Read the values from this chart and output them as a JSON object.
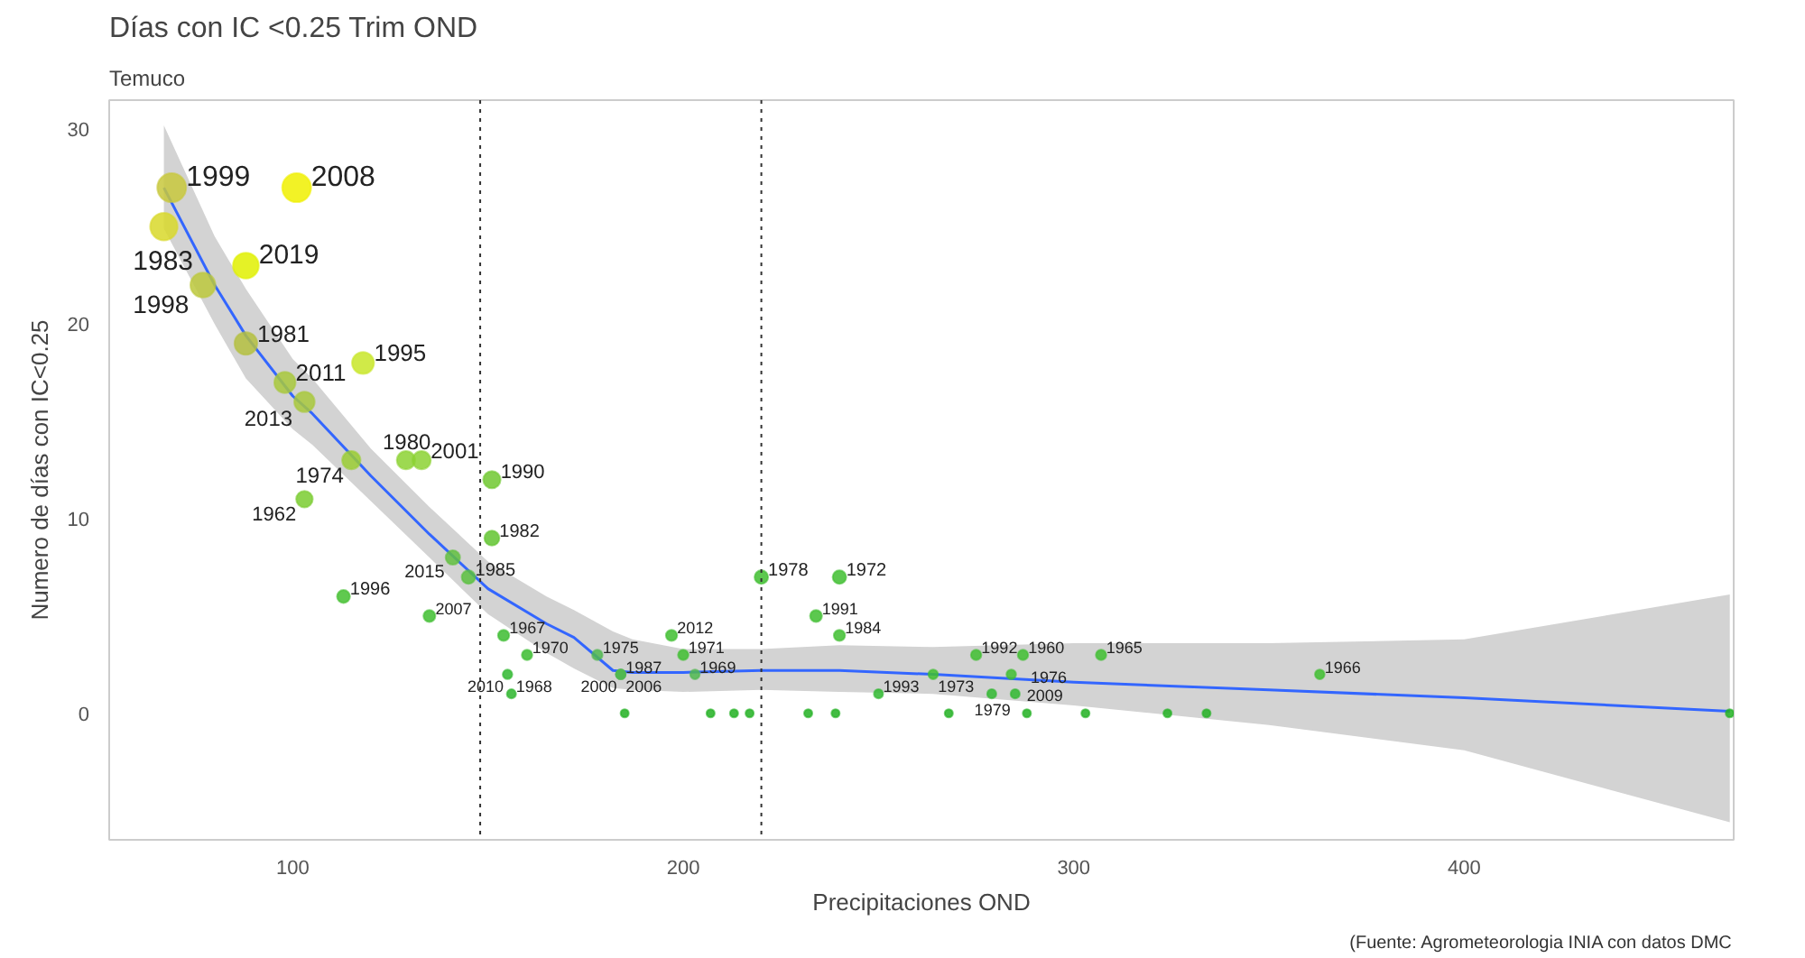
{
  "chart_data": {
    "type": "bubble",
    "title": "Días con IC <0.25 Trim OND",
    "subtitle": "Temuco",
    "xlabel": "Precipitaciones OND",
    "ylabel": "Numero de días con IC<0.25",
    "xlim": [
      53,
      469
    ],
    "ylim": [
      -6.5,
      31.5
    ],
    "xticks": [
      100,
      200,
      300,
      400
    ],
    "yticks": [
      0,
      10,
      20,
      30
    ],
    "grid": false,
    "ref_lines": [
      {
        "axis": "x",
        "value": 148,
        "label": null,
        "line_style": "dotted",
        "color": "#333333"
      },
      {
        "axis": "x",
        "value": 220,
        "label": null,
        "line_style": "dotted",
        "color": "#333333"
      }
    ],
    "series": [
      {
        "type": "line",
        "color": "#3366ff",
        "x": [
          67,
          80,
          88,
          100,
          105,
          120,
          135,
          150,
          165,
          172,
          182,
          187,
          200,
          220,
          240,
          264,
          300,
          350,
          400,
          468
        ],
        "values": [
          27,
          22,
          19.4,
          16.3,
          15.4,
          12.2,
          9.2,
          6.4,
          4.6,
          3.9,
          2.2,
          2.1,
          2.1,
          2.2,
          2.2,
          2,
          1.6,
          1.2,
          0.8,
          0.1
        ],
        "lower": [
          24.9,
          20,
          17.2,
          14.6,
          13.8,
          10.9,
          8,
          5.1,
          3.1,
          2.3,
          1.3,
          1.2,
          1.1,
          1.2,
          1.1,
          1,
          0.4,
          -0.6,
          -1.9,
          -5.6
        ],
        "upper": [
          30.2,
          24.5,
          21.8,
          18.2,
          17.2,
          13.6,
          10.6,
          7.8,
          6,
          5.3,
          4.2,
          3.8,
          3.3,
          3.3,
          3.5,
          3.4,
          3.6,
          3.6,
          3.8,
          6.1
        ]
      },
      {
        "x": [
          69,
          67,
          101,
          88,
          77,
          88,
          118,
          98,
          103,
          115,
          129,
          133,
          103,
          151,
          151,
          141,
          145,
          113,
          135,
          154,
          160,
          155,
          156,
          178,
          184,
          184,
          184,
          197,
          200,
          203,
          220,
          240,
          234,
          240,
          275,
          287,
          284,
          307,
          264,
          250,
          279,
          285,
          363,
          185,
          207,
          213,
          217,
          232,
          239,
          268,
          288,
          303,
          324,
          334,
          468
        ],
        "values": [
          27,
          25,
          27,
          23,
          22,
          19,
          18,
          17,
          16,
          13,
          13,
          13,
          11,
          12,
          9,
          8,
          7,
          6,
          5,
          4,
          3,
          2,
          1,
          3,
          2,
          2,
          2,
          4,
          3,
          2,
          7,
          7,
          5,
          4,
          3,
          3,
          2,
          3,
          2,
          1,
          1,
          1,
          2,
          0,
          0,
          0,
          0,
          0,
          0,
          0,
          0,
          0,
          0,
          0,
          0
        ],
        "sizes": [
          1,
          0.9,
          1,
          0.8,
          0.75,
          0.62,
          0.58,
          0.54,
          0.5,
          0.4,
          0.4,
          0.4,
          0.33,
          0.36,
          0.27,
          0.25,
          0.22,
          0.2,
          0.17,
          0.15,
          0.13,
          0.11,
          0.1,
          0.13,
          0.11,
          0.11,
          0.11,
          0.15,
          0.13,
          0.11,
          0.22,
          0.22,
          0.17,
          0.15,
          0.13,
          0.13,
          0.11,
          0.13,
          0.11,
          0.1,
          0.1,
          0.1,
          0.11,
          0.08,
          0.08,
          0.08,
          0.08,
          0.08,
          0.08,
          0.08,
          0.08,
          0.08,
          0.08,
          0.08,
          0.08
        ],
        "colors": [
          "#c8c83c",
          "#d8d82a",
          "#f0f000",
          "#e0f000",
          "#bcc83c",
          "#b4c040",
          "#c8e628",
          "#a8c83c",
          "#a8c83c",
          "#9acd32",
          "#8cd232",
          "#8cd232",
          "#7acc30",
          "#70c830",
          "#62c430",
          "#62c040",
          "#5ac040",
          "#44c030",
          "#40be30",
          "#3cbc30",
          "#3cbc30",
          "#30b830",
          "#2cb52c",
          "#50b850",
          "#50b850",
          "#50b850",
          "#50b850",
          "#40be30",
          "#40be30",
          "#50b850",
          "#40be30",
          "#40be30",
          "#40be30",
          "#40be30",
          "#40be30",
          "#40be30",
          "#40be30",
          "#40be30",
          "#40be30",
          "#30b830",
          "#30b830",
          "#30b830",
          "#40be30",
          "#22b022",
          "#22b022",
          "#22b022",
          "#22b022",
          "#22b022",
          "#22b022",
          "#22b022",
          "#22b022",
          "#22b022",
          "#22b022",
          "#22b022",
          "#22b022"
        ]
      }
    ],
    "annotations": [
      {
        "text": "1999",
        "x": 69,
        "y": 27
      },
      {
        "text": "1983",
        "x": 67,
        "y": 25
      },
      {
        "text": "2008",
        "x": 101,
        "y": 27
      },
      {
        "text": "2019",
        "x": 88,
        "y": 23
      },
      {
        "text": "1998",
        "x": 77,
        "y": 22
      },
      {
        "text": "1981",
        "x": 88,
        "y": 19
      },
      {
        "text": "1995",
        "x": 118,
        "y": 18
      },
      {
        "text": "2011",
        "x": 98,
        "y": 17
      },
      {
        "text": "2013",
        "x": 103,
        "y": 16
      },
      {
        "text": "1974",
        "x": 115,
        "y": 13
      },
      {
        "text": "1980",
        "x": 129,
        "y": 13
      },
      {
        "text": "2001",
        "x": 133,
        "y": 13
      },
      {
        "text": "1962",
        "x": 103,
        "y": 11
      },
      {
        "text": "1990",
        "x": 151,
        "y": 12
      },
      {
        "text": "1982",
        "x": 151,
        "y": 9
      },
      {
        "text": "2015",
        "x": 141,
        "y": 8
      },
      {
        "text": "1985",
        "x": 145,
        "y": 7
      },
      {
        "text": "1996",
        "x": 113,
        "y": 6
      },
      {
        "text": "2007",
        "x": 135,
        "y": 5
      },
      {
        "text": "1967",
        "x": 154,
        "y": 4
      },
      {
        "text": "1970",
        "x": 160,
        "y": 3
      },
      {
        "text": "2010",
        "x": 155,
        "y": 2
      },
      {
        "text": "1968",
        "x": 156,
        "y": 1
      },
      {
        "text": "1975",
        "x": 178,
        "y": 3
      },
      {
        "text": "1987",
        "x": 184,
        "y": 2
      },
      {
        "text": "2000",
        "x": 184,
        "y": 2
      },
      {
        "text": "2006",
        "x": 184,
        "y": 2
      },
      {
        "text": "2012",
        "x": 197,
        "y": 4
      },
      {
        "text": "1971",
        "x": 200,
        "y": 3
      },
      {
        "text": "1969",
        "x": 203,
        "y": 2
      },
      {
        "text": "1978",
        "x": 220,
        "y": 7
      },
      {
        "text": "1972",
        "x": 240,
        "y": 7
      },
      {
        "text": "1991",
        "x": 234,
        "y": 5
      },
      {
        "text": "1984",
        "x": 240,
        "y": 4
      },
      {
        "text": "1992",
        "x": 275,
        "y": 3
      },
      {
        "text": "1960",
        "x": 287,
        "y": 3
      },
      {
        "text": "2009",
        "x": 284,
        "y": 2
      },
      {
        "text": "1965",
        "x": 307,
        "y": 3
      },
      {
        "text": "1973",
        "x": 264,
        "y": 2
      },
      {
        "text": "1993",
        "x": 250,
        "y": 1
      },
      {
        "text": "1979",
        "x": 279,
        "y": 1
      },
      {
        "text": "1976",
        "x": 285,
        "y": 1
      },
      {
        "text": "1966",
        "x": 363,
        "y": 2
      },
      "(Fuente: Agrometeorologia INIA con datos DMC"
    ]
  }
}
